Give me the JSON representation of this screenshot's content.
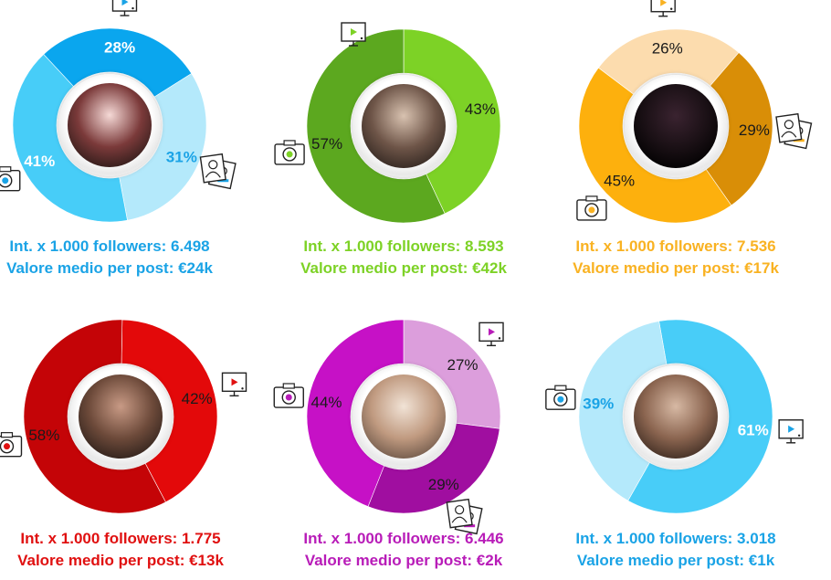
{
  "chart_data": [
    {
      "type": "pie",
      "slices": [
        {
          "icon": "tv-icon",
          "value": 28,
          "label": "28%"
        },
        {
          "icon": "photo-portrait-icon",
          "value": 31,
          "label": "31%"
        },
        {
          "icon": "camera-icon",
          "value": 41,
          "label": "41%"
        }
      ],
      "colors": [
        "#0aa6ee",
        "#b4e9fb",
        "#47cdf8"
      ],
      "label_colors": [
        "#ffffff",
        "#1aa3e6",
        "#ffffff"
      ],
      "accent": "#1aa3e6",
      "avatar_colors": [
        "#f5d9d6",
        "#7b3a3a",
        "#2a1a18"
      ],
      "stats": {
        "interactions": "Int. x 1.000 followers: 6.498",
        "avg_value": "Valore medio per post: €24k"
      }
    },
    {
      "type": "pie",
      "slices": [
        {
          "icon": "",
          "value": 43,
          "label": "43%"
        },
        {
          "icon": "camera-icon",
          "value": 57,
          "label": "57%"
        }
      ],
      "colors": [
        "#7dd226",
        "#5ca81f"
      ],
      "label_colors": [
        "#1a1a1a",
        "#1a1a1a"
      ],
      "accent": "#7dd226",
      "tv_icon": true,
      "avatar_colors": [
        "#d8c2b0",
        "#6e5548",
        "#2e241f"
      ],
      "stats": {
        "interactions": "Int. x 1.000 followers: 8.593",
        "avg_value": "Valore medio per post: €42k"
      }
    },
    {
      "type": "pie",
      "slices": [
        {
          "icon": "tv-icon",
          "value": 26,
          "label": "26%"
        },
        {
          "icon": "photo-portrait-icon",
          "value": 29,
          "label": "29%"
        },
        {
          "icon": "camera-icon",
          "value": 45,
          "label": "45%"
        }
      ],
      "colors": [
        "#fcdcae",
        "#d98e07",
        "#fdb00d"
      ],
      "label_colors": [
        "#1a1a1a",
        "#1a1a1a",
        "#1a1a1a"
      ],
      "accent": "#f9b222",
      "avatar_colors": [
        "#3a2330",
        "#1a1015",
        "#000000"
      ],
      "stats": {
        "interactions": "Int. x 1.000 followers: 7.536",
        "avg_value": "Valore medio per post: €17k"
      }
    },
    {
      "type": "pie",
      "slices": [
        {
          "icon": "tv-icon",
          "value": 42,
          "label": "42%"
        },
        {
          "icon": "camera-icon",
          "value": 58,
          "label": "58%"
        }
      ],
      "colors": [
        "#e3090a",
        "#c40407"
      ],
      "label_colors": [
        "#1a1a1a",
        "#1a1a1a"
      ],
      "accent": "#e01010",
      "avatar_colors": [
        "#c89a85",
        "#6d4a3a",
        "#2b1f1a"
      ],
      "stats": {
        "interactions": "Int. x 1.000 followers: 1.775",
        "avg_value": "Valore medio per post: €13k"
      }
    },
    {
      "type": "pie",
      "slices": [
        {
          "icon": "tv-icon",
          "value": 27,
          "label": "27%"
        },
        {
          "icon": "photo-portrait-icon",
          "value": 29,
          "label": "29%"
        },
        {
          "icon": "camera-icon",
          "value": 44,
          "label": "44%"
        }
      ],
      "colors": [
        "#dc9edc",
        "#a00ea0",
        "#c611c6"
      ],
      "label_colors": [
        "#1a1a1a",
        "#1a1a1a",
        "#1a1a1a"
      ],
      "accent": "#b81cb8",
      "avatar_colors": [
        "#f1e3d6",
        "#c09a80",
        "#6a5446"
      ],
      "stats": {
        "interactions": "Int. x 1.000 followers: 6.446",
        "avg_value": "Valore medio per post: €2k"
      }
    },
    {
      "type": "pie",
      "slices": [
        {
          "icon": "tv-icon",
          "value": 61,
          "label": "61%"
        },
        {
          "icon": "camera-icon",
          "value": 39,
          "label": "39%"
        }
      ],
      "colors": [
        "#48cdf8",
        "#b4e9fb"
      ],
      "label_colors": [
        "#ffffff",
        "#1aa3e6"
      ],
      "accent": "#1aa3e6",
      "avatar_colors": [
        "#d7b9a4",
        "#8b6550",
        "#3a2920"
      ],
      "stats": {
        "interactions": "Int. x 1.000 followers: 3.018",
        "avg_value": "Valore medio per post: €1k"
      }
    }
  ]
}
